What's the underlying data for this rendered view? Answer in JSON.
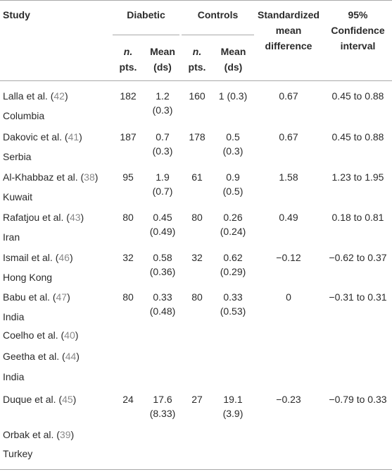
{
  "header": {
    "study": "Study",
    "diabetic": "Diabetic",
    "controls": "Controls",
    "smd": [
      "Standardized",
      "mean",
      "difference"
    ],
    "ci": [
      "95%",
      "Confidence",
      "interval"
    ],
    "npts": [
      "n.",
      "pts."
    ],
    "mean": [
      "Mean",
      "(ds)"
    ]
  },
  "rows": [
    {
      "author": "Lalla et al. (",
      "ref": "42",
      "close": ")",
      "country": "Columbia",
      "d_n": "182",
      "d_mean": "1.2",
      "d_sd": "(0.3)",
      "c_n": "160",
      "c_mean": "1 (0.3)",
      "c_sd": "",
      "smd": "0.67",
      "ci": "0.45 to 0.88"
    },
    {
      "author": "Dakovic et al. (",
      "ref": "41",
      "close": ")",
      "country": "Serbia",
      "d_n": "187",
      "d_mean": "0.7",
      "d_sd": "(0.3)",
      "c_n": "178",
      "c_mean": "0.5",
      "c_sd": "(0.3)",
      "smd": "0.67",
      "ci": "0.45 to 0.88"
    },
    {
      "author": "Al-Khabbaz et al. (",
      "ref": "38",
      "close": ")",
      "country": "Kuwait",
      "d_n": "95",
      "d_mean": "1.9",
      "d_sd": "(0.7)",
      "c_n": "61",
      "c_mean": "0.9",
      "c_sd": "(0.5)",
      "smd": "1.58",
      "ci": "1.23 to 1.95"
    },
    {
      "author": "Rafatjou et al. (",
      "ref": "43",
      "close": ")",
      "country": "Iran",
      "d_n": "80",
      "d_mean": "0.45",
      "d_sd": "(0.49)",
      "c_n": "80",
      "c_mean": "0.26",
      "c_sd": "(0.24)",
      "smd": "0.49",
      "ci": "0.18 to 0.81"
    },
    {
      "author": "Ismail et al. (",
      "ref": "46",
      "close": ")",
      "country": "Hong Kong",
      "d_n": "32",
      "d_mean": "0.58",
      "d_sd": "(0.36)",
      "c_n": "32",
      "c_mean": "0.62",
      "c_sd": "(0.29)",
      "smd": "−0.12",
      "ci": "−0.62 to 0.37"
    },
    {
      "author": "Babu et al. (",
      "ref": "47",
      "close": ")",
      "country": "India",
      "d_n": "80",
      "d_mean": "0.33",
      "d_sd": "(0.48)",
      "c_n": "80",
      "c_mean": "0.33",
      "c_sd": "(0.53)",
      "smd": "0",
      "ci": "−0.31 to 0.31"
    }
  ],
  "extra": [
    {
      "author": "Coelho et al. (",
      "ref": "40",
      "close": ")"
    },
    {
      "author": "Geetha et al. (",
      "ref": "44",
      "close": ")",
      "country": "India"
    }
  ],
  "duque": {
    "author": "Duque et al. (",
    "ref": "45",
    "close": ")",
    "d_n": "24",
    "d_mean": "17.6",
    "d_sd": "(8.33)",
    "c_n": "27",
    "c_mean": "19.1",
    "c_sd": "(3.9)",
    "smd": "−0.23",
    "ci": "−0.79 to 0.33"
  },
  "orbak": {
    "author": "Orbak et al. (",
    "ref": "39",
    "close": ")",
    "country": "Turkey"
  }
}
